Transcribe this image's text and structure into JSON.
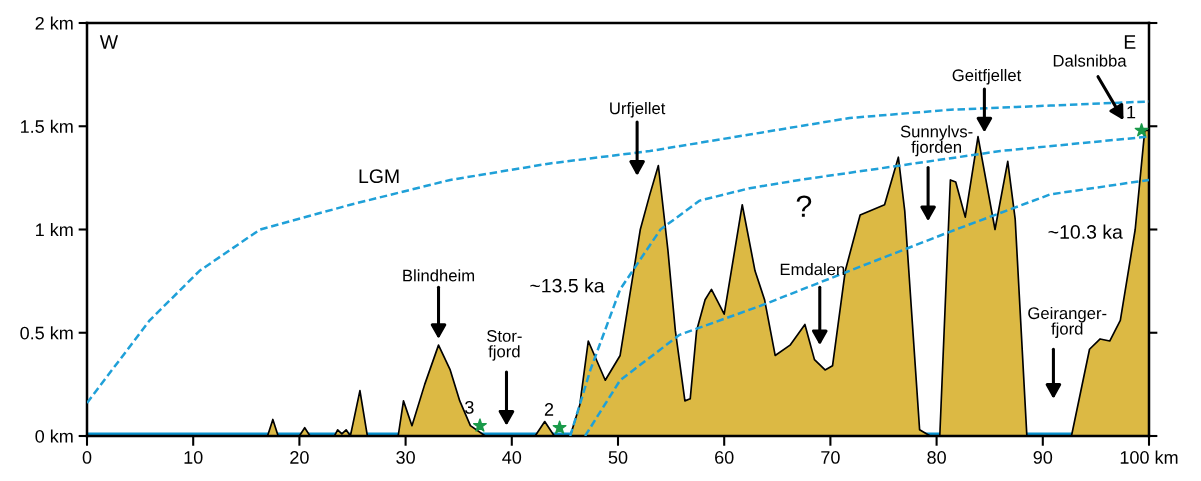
{
  "chart_data": {
    "type": "area",
    "xlim": [
      0,
      100
    ],
    "ylim": [
      0,
      2
    ],
    "xticks": [
      0,
      10,
      20,
      30,
      40,
      50,
      60,
      70,
      80,
      90,
      {
        "value": 100,
        "label": "100 km"
      }
    ],
    "yticks": [
      {
        "value": 0,
        "label": "0 km"
      },
      {
        "value": 0.5,
        "label": "0.5 km"
      },
      {
        "value": 1,
        "label": "1 km"
      },
      {
        "value": 1.5,
        "label": "1.5 km"
      },
      {
        "value": 2,
        "label": "2 km"
      }
    ],
    "grid": false,
    "legend": false,
    "series": [
      {
        "type": "line",
        "color": "#0a93cf",
        "x": [
          0,
          100
        ],
        "values": [
          0,
          0
        ]
      },
      {
        "color": "#dcb944",
        "x": [
          0,
          17,
          17.5,
          18,
          20,
          20.5,
          21,
          23.3,
          23.6,
          24,
          24.4,
          24.8,
          25.7,
          26.4,
          29.3,
          29.8,
          30.6,
          31.8,
          33.1,
          34.2,
          35.1,
          36.1,
          37.5,
          42.2,
          43.1,
          44,
          45.5,
          46.4,
          47.2,
          48.8,
          50.2,
          52.1,
          53,
          53.8,
          54.7,
          55.4,
          56.3,
          56.8,
          57.4,
          58.2,
          58.8,
          60,
          61.7,
          62.9,
          63.8,
          64.8,
          66.2,
          67.6,
          68.5,
          69.5,
          70.2,
          71.4,
          72.8,
          73.7,
          75.1,
          76.4,
          77,
          78.4,
          79.4,
          80.3,
          81.3,
          81.8,
          82.7,
          83.9,
          85.5,
          86.7,
          87.4,
          88.5,
          92.7,
          94.4,
          95.4,
          96.3,
          97.3,
          98.7,
          99.6,
          100
        ],
        "values": [
          0,
          0,
          0.08,
          0,
          0,
          0.04,
          0,
          0,
          0.03,
          0.01,
          0.03,
          0,
          0.22,
          0,
          0,
          0.17,
          0.05,
          0.25,
          0.44,
          0.32,
          0.17,
          0.05,
          0,
          0,
          0.07,
          0,
          0,
          0.15,
          0.46,
          0.27,
          0.39,
          1.0,
          1.17,
          1.31,
          0.9,
          0.51,
          0.17,
          0.18,
          0.51,
          0.66,
          0.71,
          0.59,
          1.12,
          0.8,
          0.66,
          0.39,
          0.44,
          0.54,
          0.37,
          0.32,
          0.34,
          0.8,
          1.07,
          1.09,
          1.12,
          1.35,
          1.09,
          0.03,
          0,
          0,
          1.24,
          1.23,
          1.06,
          1.45,
          1.0,
          1.33,
          1.05,
          0,
          0,
          0.42,
          0.47,
          0.46,
          0.56,
          1.0,
          1.48,
          1.48
        ]
      },
      {
        "type": "line",
        "color": "#1fa0d8",
        "line_style": "dashed",
        "x": [
          0,
          5.9,
          10.6,
          16.3,
          24.8,
          34.2,
          43.6,
          53,
          62.4,
          71.8,
          81.3,
          90.7,
          100
        ],
        "values": [
          0.16,
          0.56,
          0.8,
          1.0,
          1.12,
          1.24,
          1.32,
          1.38,
          1.46,
          1.54,
          1.58,
          1.6,
          1.62
        ]
      },
      {
        "type": "line",
        "color": "#1fa0d8",
        "line_style": "dashed",
        "x": [
          45.5,
          47.4,
          50.2,
          54,
          57.7,
          62.4,
          67.1,
          76.6,
          86,
          100
        ],
        "values": [
          0,
          0.32,
          0.71,
          1.0,
          1.14,
          1.2,
          1.24,
          1.31,
          1.38,
          1.45
        ]
      },
      {
        "type": "line",
        "color": "#1fa0d8",
        "line_style": "dashed",
        "x": [
          46.9,
          50.2,
          55.8,
          63.4,
          71.8,
          81.3,
          90.7,
          100
        ],
        "values": [
          0,
          0.27,
          0.49,
          0.63,
          0.8,
          0.99,
          1.17,
          1.24
        ]
      },
      {
        "type": "scatter",
        "color": "#1a9a4a",
        "marker": "star",
        "x": [
          37,
          44.5,
          99.3
        ],
        "values": [
          0.05,
          0.04,
          1.48
        ]
      }
    ],
    "annotations": [
      "W",
      "E",
      "LGM",
      "~13.5 ka",
      "~10.3 ka",
      "?",
      {
        "text": "3",
        "x": 37,
        "y": 0.05
      },
      {
        "text": "2",
        "x": 44.5,
        "y": 0.04
      },
      {
        "text": "1",
        "x": 99.3,
        "y": 1.48
      },
      "Blindheim",
      "Stor-\nfjord",
      "Urfjellet",
      "Emdalen",
      "Sunnylvs-\nfjorden",
      "Geitfjellet",
      "Dalsnibba",
      "Geiranger-\nfjord"
    ]
  }
}
